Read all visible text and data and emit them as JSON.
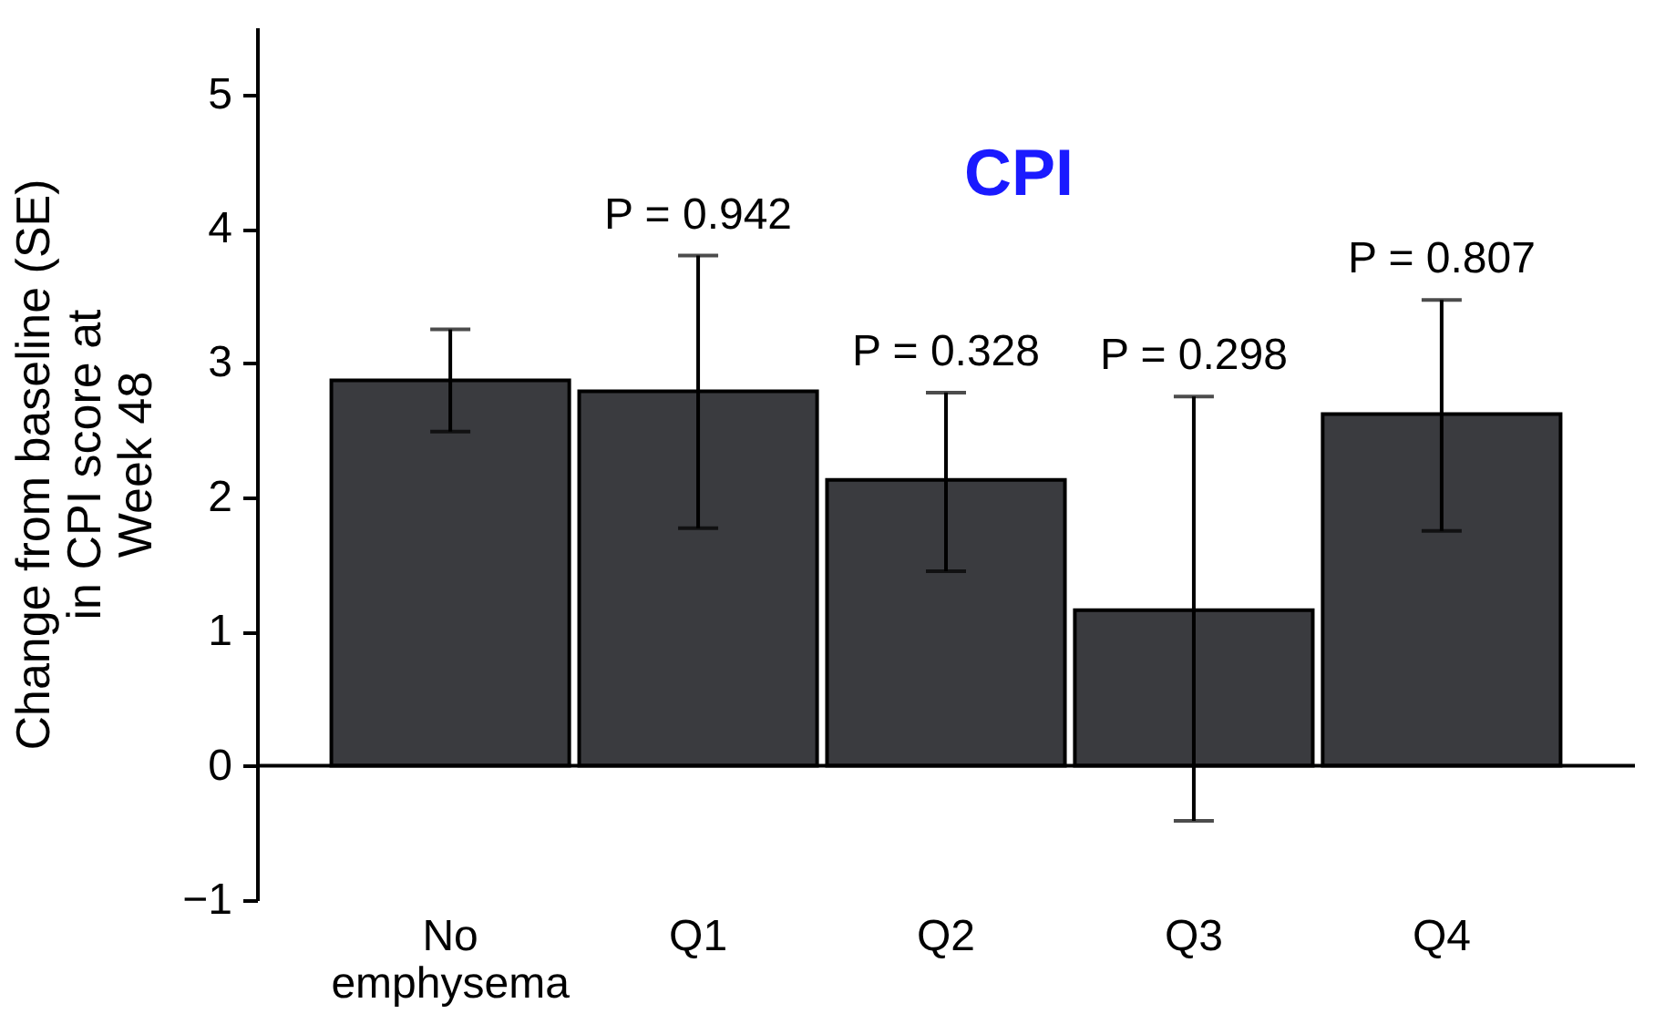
{
  "chart_data": {
    "type": "bar",
    "title": "CPI",
    "ylabel": "Change from baseline (SE)\nin CPI score at\nWeek 48",
    "categories": [
      "No emphysema",
      "Q1",
      "Q2",
      "Q3",
      "Q4"
    ],
    "values": [
      2.87,
      2.79,
      2.13,
      1.16,
      2.62
    ],
    "errors": [
      [
        2.49,
        3.25
      ],
      [
        1.77,
        3.8
      ],
      [
        1.45,
        2.78
      ],
      [
        -0.41,
        2.75
      ],
      [
        1.75,
        3.47
      ]
    ],
    "color": "#3a3b3f",
    "ylim": [
      -1,
      5.5
    ],
    "yticks": [
      -1,
      0,
      1,
      2,
      3,
      4,
      5
    ],
    "ref_lines": [
      {
        "axis": "y",
        "value": 0
      }
    ],
    "annotations": [
      {
        "text": "P = 0.942",
        "x": "Q1",
        "y": 3.8
      },
      {
        "text": "P = 0.328",
        "x": "Q2",
        "y": 2.78
      },
      {
        "text": "P = 0.298",
        "x": "Q3",
        "y": 2.75
      },
      {
        "text": "P = 0.807",
        "x": "Q4",
        "y": 3.47
      }
    ],
    "grid": false
  }
}
